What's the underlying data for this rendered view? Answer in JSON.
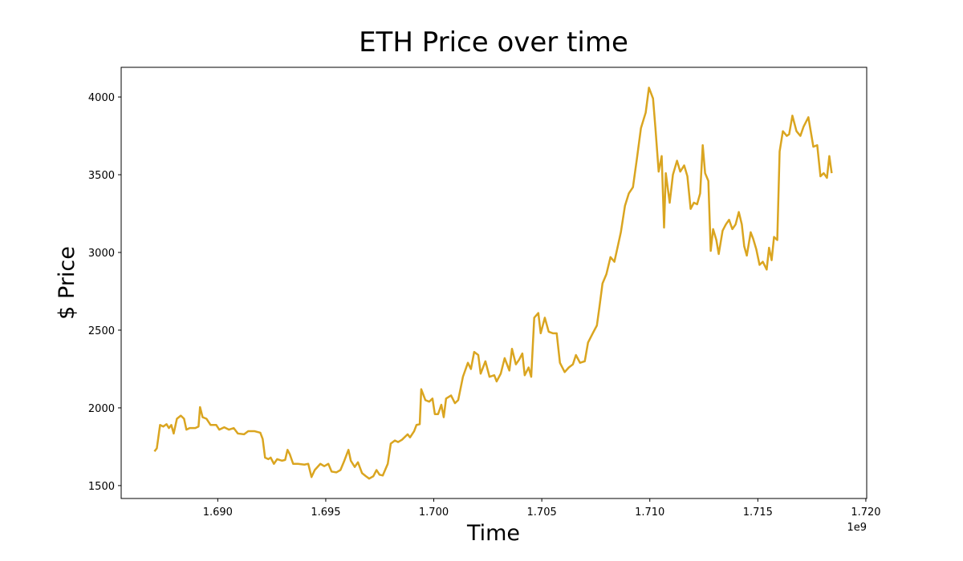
{
  "chart_data": {
    "type": "line",
    "title": "ETH Price over time",
    "x_label": "Time",
    "y_label": "$ Price",
    "x_offset_label": "1e9",
    "color": "#DAA520",
    "grid": false,
    "xlim": [
      1.68553,
      1.72004
    ],
    "ylim": [
      1417,
      4191
    ],
    "xticks": [
      {
        "value": 1.69,
        "label": "1.690"
      },
      1.695,
      {
        "value": 1.7,
        "label": "1.700"
      },
      1.705,
      {
        "value": 1.71,
        "label": "1.710"
      },
      1.715,
      {
        "value": 1.72,
        "label": "1.720"
      }
    ],
    "yticks": [
      1500,
      2000,
      2500,
      3000,
      3500,
      4000
    ],
    "x": [
      1.68707,
      1.68718,
      1.68733,
      1.68748,
      1.68763,
      1.68774,
      1.68785,
      1.68796,
      1.68811,
      1.68829,
      1.68844,
      1.68855,
      1.6887,
      1.68896,
      1.68911,
      1.68918,
      1.6893,
      1.68948,
      1.68967,
      1.68993,
      1.69007,
      1.6903,
      1.69052,
      1.69074,
      1.69093,
      1.69122,
      1.69141,
      1.69171,
      1.69197,
      1.69208,
      1.69219,
      1.69234,
      1.69245,
      1.6926,
      1.69275,
      1.69297,
      1.69312,
      1.69323,
      1.69334,
      1.69349,
      1.69371,
      1.69401,
      1.69419,
      1.69434,
      1.69449,
      1.69475,
      1.69493,
      1.69512,
      1.69527,
      1.69549,
      1.69568,
      1.69586,
      1.69605,
      1.69616,
      1.69634,
      1.69649,
      1.69668,
      1.69686,
      1.69701,
      1.6972,
      1.69735,
      1.69749,
      1.69764,
      1.69787,
      1.69801,
      1.6982,
      1.69835,
      1.69853,
      1.69879,
      1.6989,
      1.69909,
      1.6992,
      1.69935,
      1.69942,
      1.69961,
      1.69979,
      1.69994,
      1.70005,
      1.7002,
      1.70035,
      1.70046,
      1.70057,
      1.7008,
      1.70098,
      1.70113,
      1.70135,
      1.70158,
      1.70172,
      1.70187,
      1.70206,
      1.70217,
      1.70239,
      1.70258,
      1.7028,
      1.70291,
      1.7031,
      1.70328,
      1.7035,
      1.70362,
      1.7038,
      1.70395,
      1.7041,
      1.70421,
      1.70439,
      1.70451,
      1.70465,
      1.70484,
      1.70495,
      1.70514,
      1.70532,
      1.70551,
      1.70569,
      1.70584,
      1.70606,
      1.70625,
      1.70644,
      1.70658,
      1.70677,
      1.70699,
      1.70714,
      1.70736,
      1.70755,
      1.70766,
      1.70781,
      1.70799,
      1.70818,
      1.70836,
      1.70855,
      1.70866,
      1.70885,
      1.70903,
      1.70922,
      1.7094,
      1.70959,
      1.70981,
      1.70996,
      1.71015,
      1.71026,
      1.71041,
      1.71055,
      1.71066,
      1.71074,
      1.71092,
      1.71107,
      1.71126,
      1.71141,
      1.71159,
      1.71174,
      1.71189,
      1.71204,
      1.71219,
      1.71233,
      1.71245,
      1.71256,
      1.71271,
      1.71282,
      1.71293,
      1.71308,
      1.71319,
      1.71337,
      1.71352,
      1.71367,
      1.71382,
      1.71397,
      1.71412,
      1.71426,
      1.71437,
      1.71449,
      1.71467,
      1.71478,
      1.71493,
      1.71508,
      1.71523,
      1.71541,
      1.71552,
      1.71564,
      1.71575,
      1.7159,
      1.71601,
      1.71616,
      1.71634,
      1.71645,
      1.7166,
      1.71679,
      1.71697,
      1.71712,
      1.71734,
      1.71757,
      1.71775,
      1.7179,
      1.71805,
      1.7182,
      1.71831,
      1.71842
    ],
    "values": [
      1720,
      1740,
      1890,
      1880,
      1895,
      1870,
      1890,
      1835,
      1930,
      1950,
      1930,
      1860,
      1870,
      1870,
      1880,
      2005,
      1940,
      1930,
      1890,
      1890,
      1860,
      1875,
      1860,
      1870,
      1835,
      1830,
      1850,
      1850,
      1840,
      1800,
      1680,
      1670,
      1680,
      1640,
      1670,
      1660,
      1665,
      1730,
      1700,
      1640,
      1640,
      1635,
      1640,
      1555,
      1600,
      1640,
      1625,
      1640,
      1590,
      1585,
      1600,
      1660,
      1730,
      1660,
      1620,
      1650,
      1580,
      1560,
      1545,
      1560,
      1600,
      1570,
      1565,
      1640,
      1770,
      1790,
      1780,
      1795,
      1830,
      1810,
      1850,
      1890,
      1895,
      2120,
      2050,
      2040,
      2060,
      1960,
      1960,
      2020,
      1940,
      2060,
      2080,
      2030,
      2050,
      2200,
      2290,
      2250,
      2360,
      2340,
      2220,
      2300,
      2200,
      2210,
      2170,
      2220,
      2320,
      2240,
      2380,
      2280,
      2310,
      2350,
      2210,
      2260,
      2200,
      2580,
      2610,
      2480,
      2580,
      2490,
      2480,
      2480,
      2290,
      2230,
      2260,
      2280,
      2340,
      2290,
      2300,
      2420,
      2480,
      2530,
      2640,
      2800,
      2860,
      2970,
      2940,
      3060,
      3130,
      3300,
      3380,
      3420,
      3600,
      3800,
      3900,
      4060,
      3990,
      3800,
      3520,
      3620,
      3160,
      3510,
      3320,
      3500,
      3590,
      3520,
      3560,
      3490,
      3280,
      3320,
      3310,
      3380,
      3690,
      3510,
      3460,
      3010,
      3150,
      3080,
      2990,
      3140,
      3180,
      3210,
      3150,
      3180,
      3260,
      3180,
      3040,
      2980,
      3130,
      3090,
      3020,
      2920,
      2940,
      2890,
      3030,
      2950,
      3100,
      3080,
      3650,
      3780,
      3750,
      3760,
      3880,
      3780,
      3750,
      3810,
      3870,
      3680,
      3690,
      3490,
      3510,
      3480,
      3620,
      3510
    ]
  }
}
